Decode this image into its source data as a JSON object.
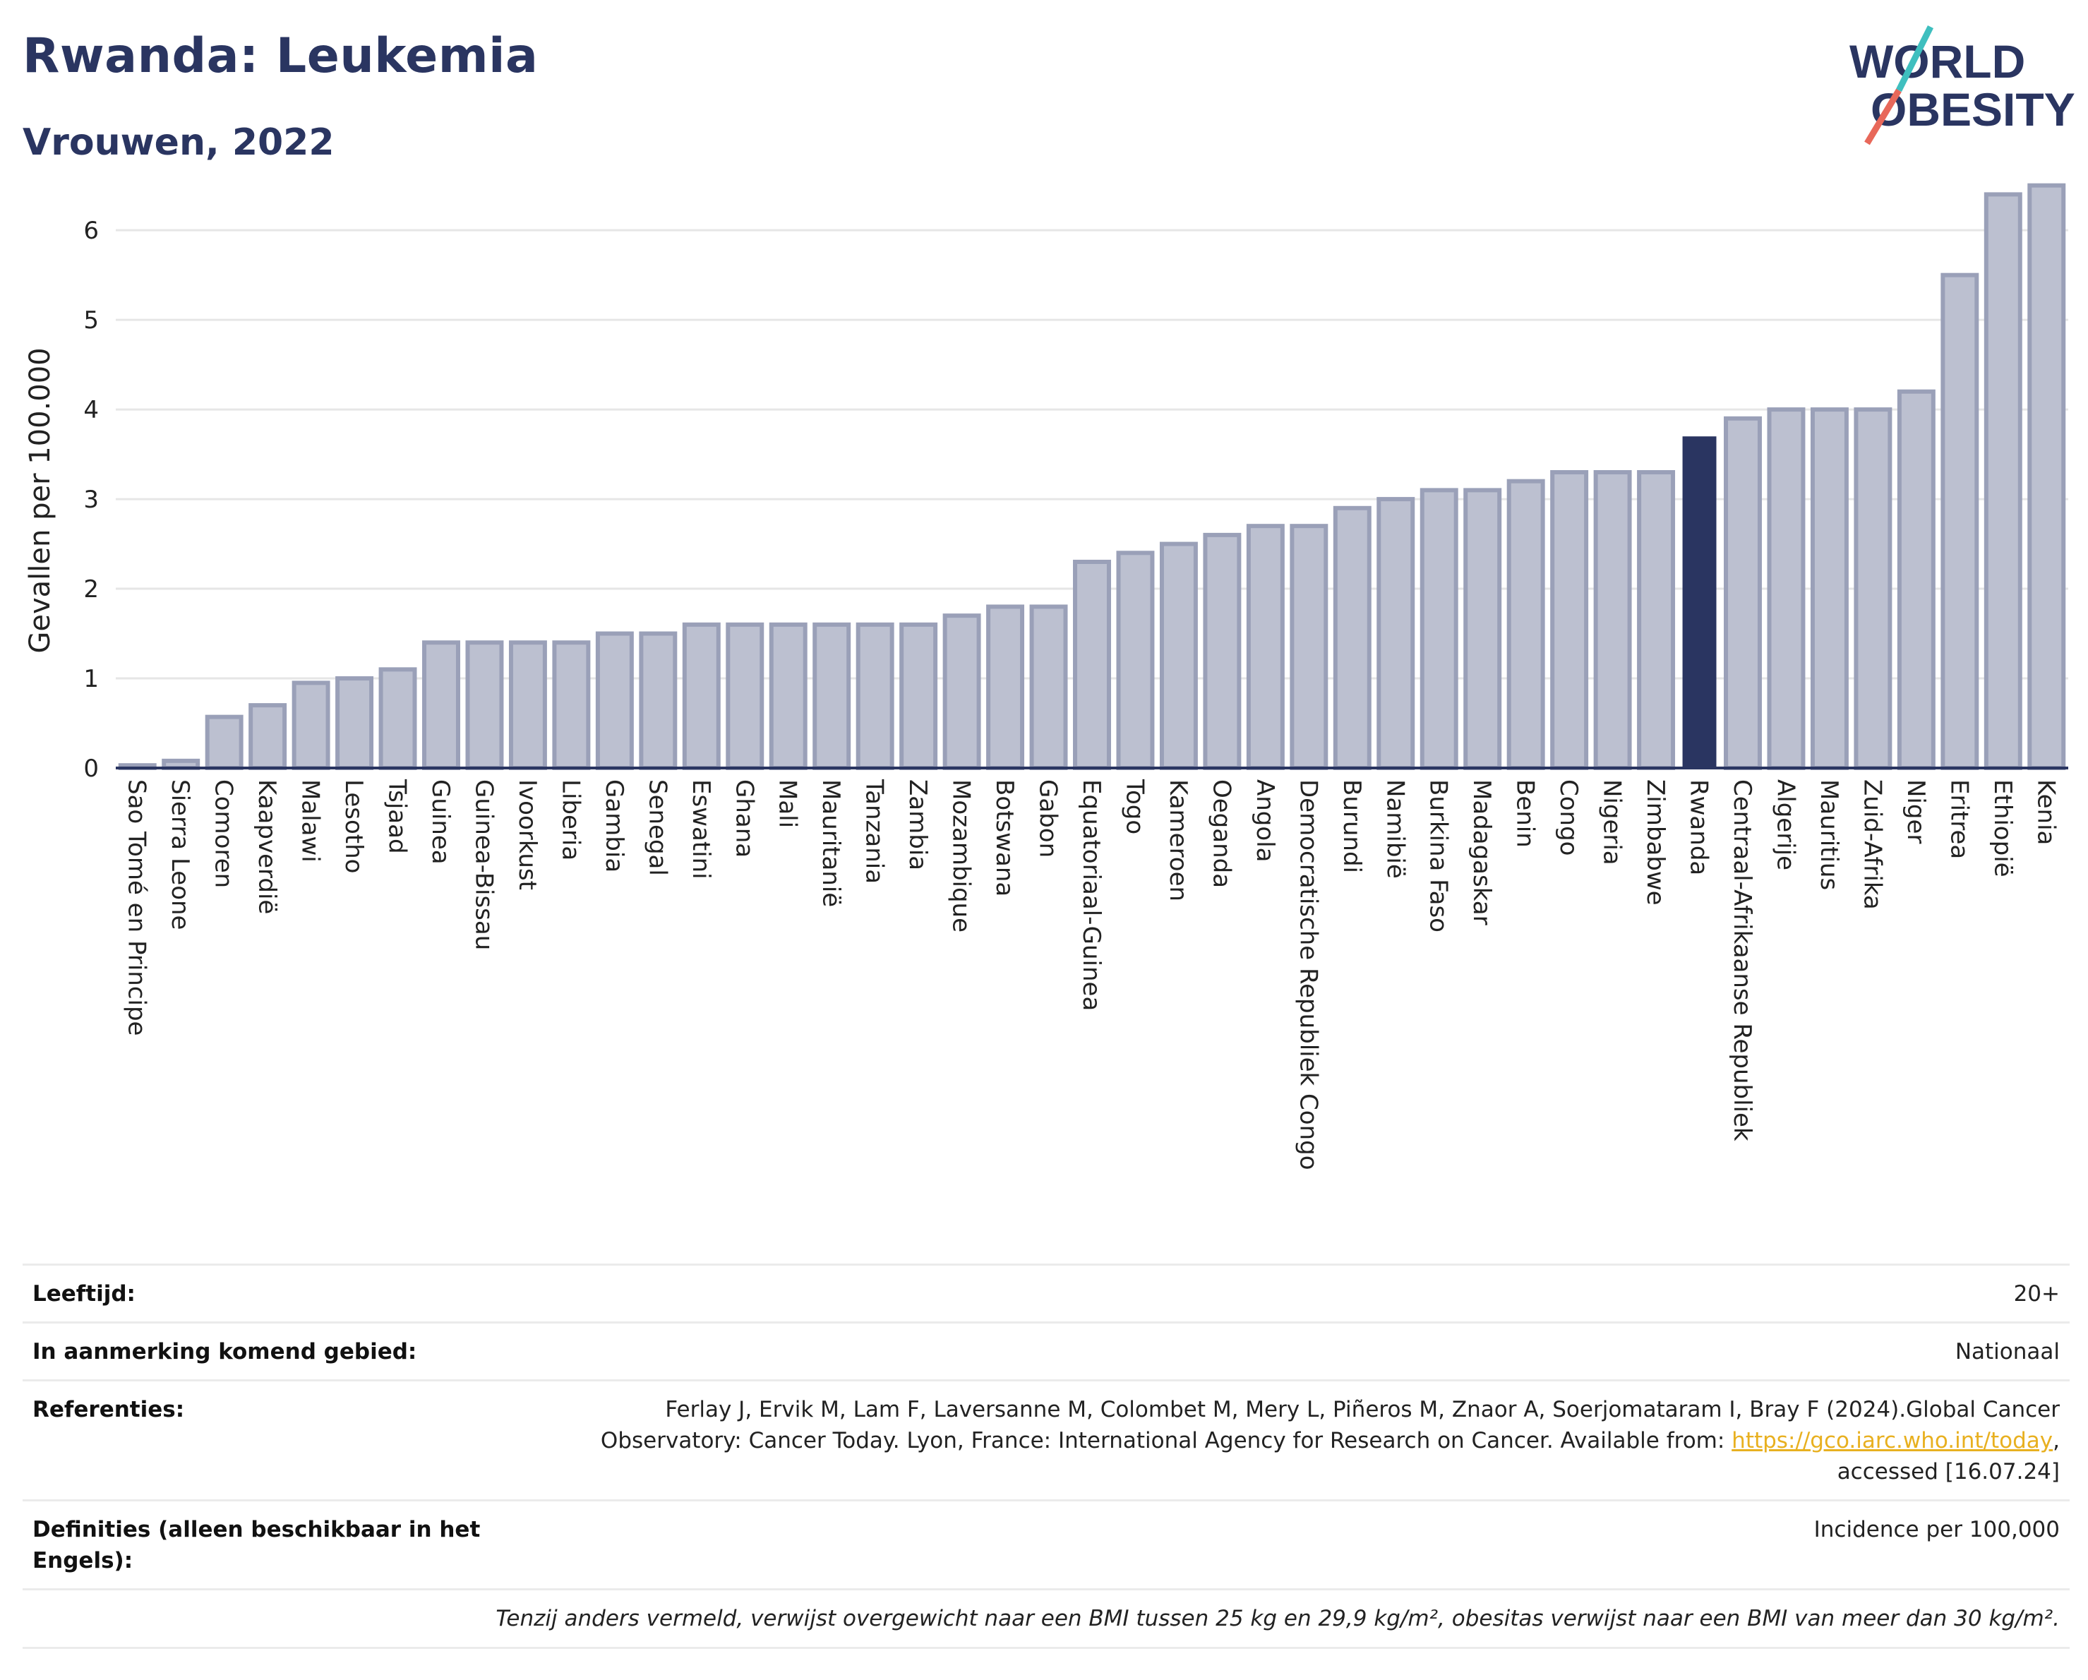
{
  "title": "Rwanda: Leukemia",
  "subtitle": "Vrouwen, 2022",
  "logo": {
    "line1": "WORLD",
    "line2": "OBESITY",
    "accent_colors": [
      "#3fbfbf",
      "#e8685a"
    ],
    "color": "#2a3561"
  },
  "colors": {
    "bar": "#bcc0d0",
    "bar_border": "#9aa0b8",
    "highlight": "#2a3561",
    "title": "#2a3561",
    "link": "#e8b020"
  },
  "chart_data": {
    "type": "bar",
    "ylabel": "Gevallen per 100.000",
    "ylim": [
      0,
      6.6
    ],
    "yticks": [
      0,
      1,
      2,
      3,
      4,
      5,
      6
    ],
    "grid": true,
    "highlight": "Rwanda",
    "categories": [
      "Sao Tomé en Principe",
      "Sierra Leone",
      "Comoren",
      "Kaapverdië",
      "Malawi",
      "Lesotho",
      "Tsjaad",
      "Guinea",
      "Guinea-Bissau",
      "Ivoorkust",
      "Liberia",
      "Gambia",
      "Senegal",
      "Eswatini",
      "Ghana",
      "Mali",
      "Mauritanië",
      "Tanzania",
      "Zambia",
      "Mozambique",
      "Botswana",
      "Gabon",
      "Equatoriaal-Guinea",
      "Togo",
      "Kameroen",
      "Oeganda",
      "Angola",
      "Democratische Republiek Congo",
      "Burundi",
      "Namibië",
      "Burkina Faso",
      "Madagaskar",
      "Benin",
      "Congo",
      "Nigeria",
      "Zimbabwe",
      "Rwanda",
      "Centraal-Afrikaanse Republiek",
      "Algerije",
      "Mauritius",
      "Zuid-Afrika",
      "Niger",
      "Eritrea",
      "Ethiopië",
      "Kenia"
    ],
    "values": [
      0.03,
      0.08,
      0.57,
      0.7,
      0.95,
      1.0,
      1.1,
      1.4,
      1.4,
      1.4,
      1.4,
      1.5,
      1.5,
      1.6,
      1.6,
      1.6,
      1.6,
      1.6,
      1.6,
      1.7,
      1.8,
      1.8,
      2.3,
      2.4,
      2.5,
      2.6,
      2.7,
      2.7,
      2.9,
      3.0,
      3.1,
      3.1,
      3.2,
      3.3,
      3.3,
      3.3,
      3.7,
      3.9,
      4.0,
      4.0,
      4.0,
      4.2,
      5.5,
      6.4,
      6.5
    ]
  },
  "meta": [
    {
      "label": "Leeftijd:",
      "value": "20+"
    },
    {
      "label": "In aanmerking komend gebied:",
      "value": "Nationaal"
    },
    {
      "label": "Referenties:",
      "value_line1": "Ferlay J, Ervik M, Lam F, Laversanne M, Colombet M, Mery L, Piñeros M, Znaor A, Soerjomataram I, Bray F (2024).Global Cancer",
      "value_line2_pre": "Observatory: Cancer Today. Lyon, France: International Agency for Research on Cancer. Available from: ",
      "value_link": "https://gco.iarc.who.int/today",
      "value_line2_post": ",",
      "value_line3": "accessed [16.07.24]"
    },
    {
      "label_line1": "Definities (alleen beschikbaar in het",
      "label_line2": "Engels):",
      "value": "Incidence per 100,000"
    }
  ],
  "footnote": "Tenzij anders vermeld, verwijst overgewicht naar een BMI tussen 25 kg en 29,9 kg/m², obesitas verwijst naar een BMI van meer dan 30 kg/m²."
}
